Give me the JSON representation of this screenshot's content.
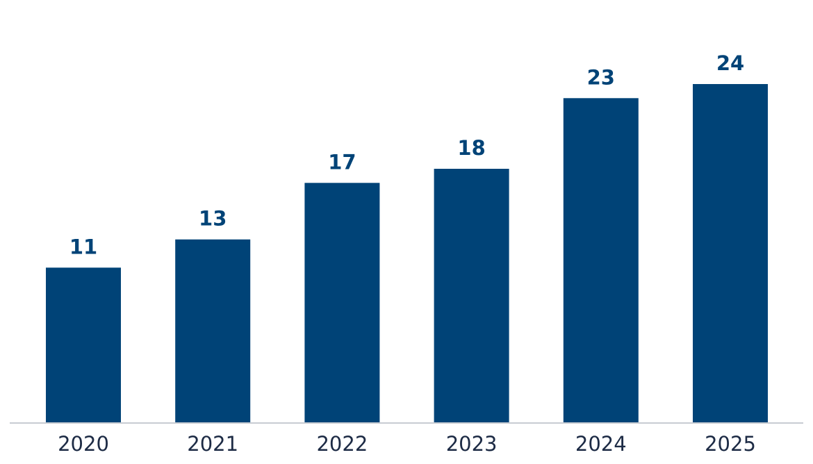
{
  "chart_data": {
    "type": "bar",
    "categories": [
      "2020",
      "2021",
      "2022",
      "2023",
      "2024",
      "2025"
    ],
    "values": [
      11,
      13,
      17,
      18,
      23,
      24
    ],
    "value_labels": [
      "11",
      "13",
      "17",
      "18",
      "23",
      "24"
    ],
    "title": "",
    "xlabel": "",
    "ylabel": "",
    "ylim": [
      0,
      24
    ],
    "grid": false,
    "legend": "none"
  },
  "colors": {
    "bar": "#004377",
    "value_label": "#004377",
    "tick_label": "#1d2b45",
    "axis_line": "#c8ccd2"
  }
}
